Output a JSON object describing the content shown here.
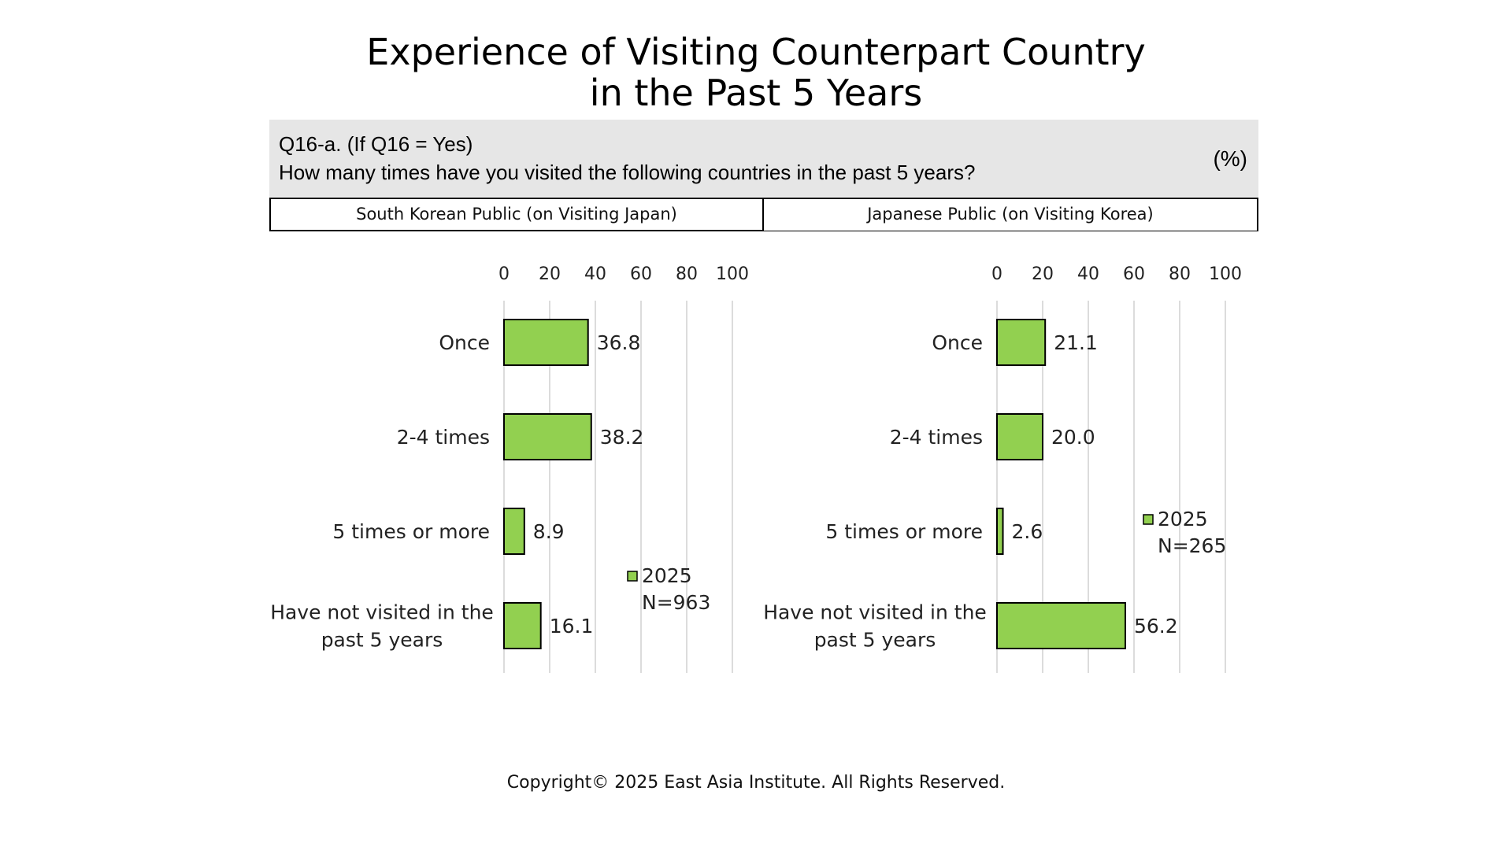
{
  "title_line1": "Experience of Visiting Counterpart Country",
  "title_line2": "in the Past 5 Years",
  "question": {
    "line1": "Q16-a. (If Q16 = Yes)",
    "line2": "How many times have you visited the following countries in the past 5 years?",
    "unit": "(%)"
  },
  "panels": {
    "left_header": "South Korean Public (on Visiting Japan)",
    "right_header": "Japanese Public (on Visiting Korea)"
  },
  "colors": {
    "bar_fill": "#92d050",
    "bar_stroke": "#000000",
    "grid": "#d0d0d0"
  },
  "chart_data": [
    {
      "type": "bar",
      "orientation": "horizontal",
      "categories": [
        "Once",
        "2-4 times",
        "5 times or more",
        "Have not visited in the past 5 years"
      ],
      "category_lines": [
        [
          "Once"
        ],
        [
          "2-4 times"
        ],
        [
          "5 times or more"
        ],
        [
          "Have not visited in the",
          "past 5 years"
        ]
      ],
      "series": [
        {
          "name": "2025",
          "values": [
            36.8,
            38.2,
            8.9,
            16.1
          ]
        }
      ],
      "value_labels": [
        "36.8",
        "38.2",
        "8.9",
        "16.1"
      ],
      "xlim": [
        0,
        100
      ],
      "xticks": [
        0,
        20,
        40,
        60,
        80,
        100
      ],
      "axis_position": "top",
      "grid": true,
      "legend": {
        "name": "2025",
        "note": "N=963",
        "placement": "bottom-right"
      }
    },
    {
      "type": "bar",
      "orientation": "horizontal",
      "categories": [
        "Once",
        "2-4 times",
        "5 times or more",
        "Have not visited in the past 5 years"
      ],
      "category_lines": [
        [
          "Once"
        ],
        [
          "2-4 times"
        ],
        [
          "5 times or more"
        ],
        [
          "Have not visited in the",
          "past 5 years"
        ]
      ],
      "series": [
        {
          "name": "2025",
          "values": [
            21.1,
            20.0,
            2.6,
            56.2
          ]
        }
      ],
      "value_labels": [
        "21.1",
        "20.0",
        "2.6",
        "56.2"
      ],
      "xlim": [
        0,
        100
      ],
      "xticks": [
        0,
        20,
        40,
        60,
        80,
        100
      ],
      "axis_position": "top",
      "grid": true,
      "legend": {
        "name": "2025",
        "note": "N=265",
        "placement": "center-right"
      }
    }
  ],
  "copyright": "Copyright© 2025 East Asia Institute. All Rights Reserved."
}
